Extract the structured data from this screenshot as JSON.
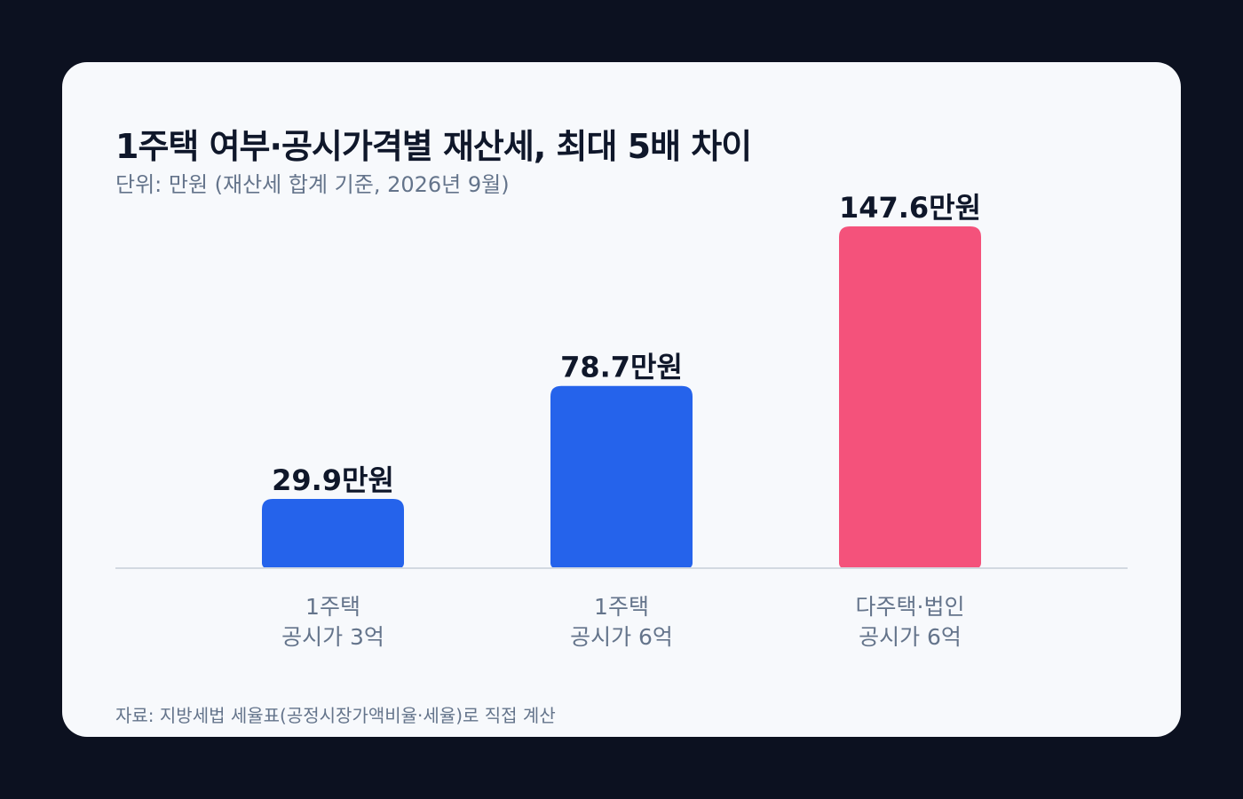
{
  "chart_data": {
    "type": "bar",
    "title": "1주택 여부·공시가격별 재산세, 최대 5배 차이",
    "subtitle": "단위: 만원 (재산세 합계 기준, 2026년 9월)",
    "categories": [
      [
        "1주택",
        "공시가 3억"
      ],
      [
        "1주택",
        "공시가 6억"
      ],
      [
        "다주택·법인",
        "공시가 6억"
      ]
    ],
    "values": [
      29.9,
      78.7,
      147.6
    ],
    "value_labels": [
      "29.9만원",
      "78.7만원",
      "147.6만원"
    ],
    "colors": [
      "#2563eb",
      "#2563eb",
      "#f4527b"
    ],
    "ylim": [
      0,
      150
    ],
    "grid": false,
    "legend": "none",
    "source": "자료: 지방세법 세율표(공정시장가액비율·세율)로 직접 계산"
  }
}
